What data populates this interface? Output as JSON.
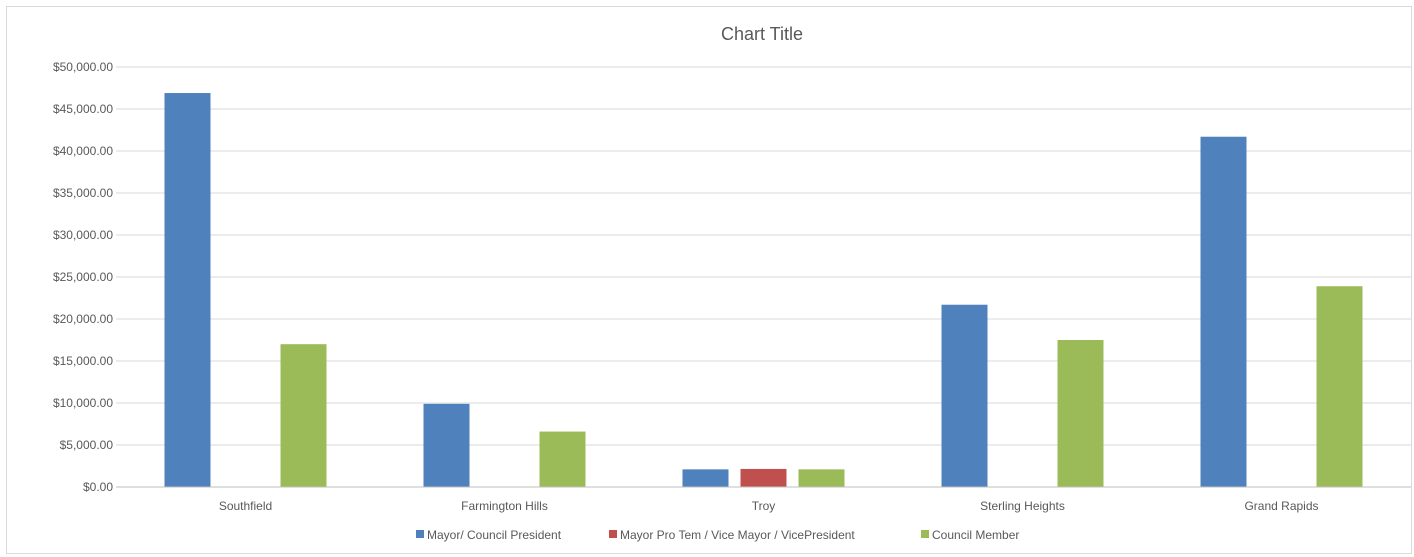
{
  "chart_data": {
    "type": "bar",
    "title": "Chart Title",
    "xlabel": "",
    "ylabel": "",
    "ylim": [
      0,
      50000
    ],
    "ytick_step": 5000,
    "ytick_labels": [
      "$0.00",
      "$5,000.00",
      "$10,000.00",
      "$15,000.00",
      "$20,000.00",
      "$25,000.00",
      "$30,000.00",
      "$35,000.00",
      "$40,000.00",
      "$45,000.00",
      "$50,000.00"
    ],
    "grid": true,
    "legend_position": "bottom",
    "categories": [
      "Southfield",
      "Farmington Hills",
      "Troy",
      "Sterling Heights",
      "Grand Rapids"
    ],
    "series": [
      {
        "name": "Mayor/ Council President",
        "color": "#4f81bd",
        "values": [
          46900,
          9900,
          2100,
          21700,
          41700
        ]
      },
      {
        "name": "Mayor Pro Tem / Vice Mayor / VicePresident",
        "color": "#c0504d",
        "values": [
          0,
          0,
          2150,
          0,
          0
        ]
      },
      {
        "name": "Council Member",
        "color": "#9bbb59",
        "values": [
          17000,
          6600,
          2100,
          17500,
          23900
        ]
      }
    ]
  }
}
